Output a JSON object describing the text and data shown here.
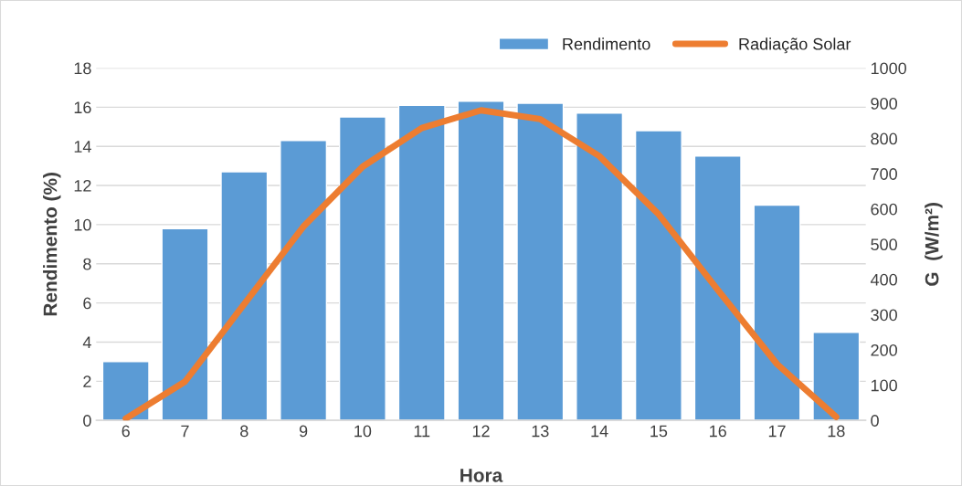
{
  "chart_data": {
    "type": "bar",
    "categories": [
      "6",
      "7",
      "8",
      "9",
      "10",
      "11",
      "12",
      "13",
      "14",
      "15",
      "16",
      "17",
      "18"
    ],
    "xlabel": "Hora",
    "ylabel": "Rendimento (%)",
    "y2label": "G  (W/m²)",
    "series": [
      {
        "name": "Rendimento",
        "color": "#5b9bd5",
        "values": [
          3.0,
          9.8,
          12.7,
          14.3,
          15.5,
          16.1,
          16.3,
          16.2,
          15.7,
          14.8,
          13.5,
          11.0,
          4.5
        ]
      },
      {
        "name": "Radiação Solar",
        "type": "line",
        "axis": "y2",
        "color": "#ed7d31",
        "values": [
          5,
          110,
          330,
          550,
          720,
          830,
          880,
          855,
          750,
          585,
          370,
          160,
          10
        ]
      }
    ],
    "ylim": [
      0,
      18
    ],
    "yticks": [
      0,
      2,
      4,
      6,
      8,
      10,
      12,
      14,
      16,
      18
    ],
    "y2lim": [
      0,
      1000
    ],
    "y2ticks": [
      0,
      100,
      200,
      300,
      400,
      500,
      600,
      700,
      800,
      900,
      1000
    ],
    "grid": "y",
    "legend": "top right",
    "marker": "none",
    "line_style": "solid"
  }
}
